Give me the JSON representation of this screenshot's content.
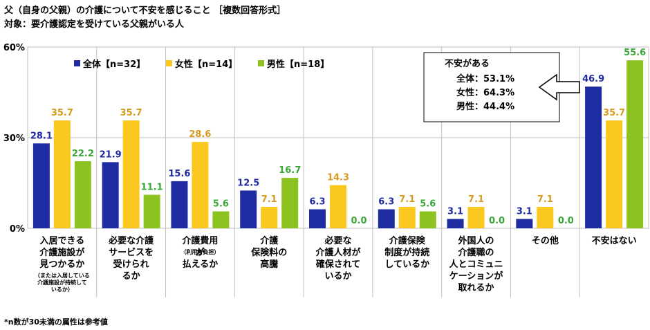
{
  "title": "父（自身の父親）の介護について不安を感じること ［複数回答形式］",
  "subtitle": "対象：要介護認定を受けている父親がいる人",
  "footnote": "*n数が30未満の属性は参考値",
  "colors": {
    "all": "#1f2ba0",
    "female": "#fac81e",
    "male": "#8cc321",
    "label_female": "#d89a1c",
    "label_male": "#3aa63a"
  },
  "chart_data": {
    "type": "bar",
    "ylim": [
      0,
      60
    ],
    "yticks": [
      "0%",
      "30%",
      "60%"
    ],
    "ytick_values": [
      0,
      30,
      60
    ],
    "categories": [
      [
        "入居できる",
        "介護施設が",
        "見つかるか"
      ],
      [
        "必要な介護",
        "サービスを",
        "受けられ",
        "るか"
      ],
      [
        "介護費用",
        "",
        "が",
        "払えるか"
      ],
      [
        "介護",
        "保険料の",
        "高騰"
      ],
      [
        "必要な",
        "介護人材が",
        "確保されて",
        "いるか"
      ],
      [
        "介護保険",
        "制度が持続",
        "しているか"
      ],
      [
        "外国人の",
        "介護職の",
        "人とコミュニ",
        "ケーションが",
        "取れるか"
      ],
      [
        "その他"
      ],
      [
        "不安はない"
      ]
    ],
    "category_notes": [
      [
        "（または入居している",
        "介護施設が持続して",
        "いるか）"
      ],
      [],
      [
        "（利用者負担）"
      ],
      [],
      [],
      [],
      [],
      [],
      []
    ],
    "series": [
      {
        "name": "全体【n=32】",
        "values": [
          28.1,
          21.9,
          15.6,
          12.5,
          6.3,
          6.3,
          3.1,
          3.1,
          46.9
        ]
      },
      {
        "name": "女性【n=14】",
        "values": [
          35.7,
          35.7,
          28.6,
          7.1,
          14.3,
          7.1,
          7.1,
          7.1,
          35.7
        ]
      },
      {
        "name": "男性【n=18】",
        "values": [
          22.2,
          11.1,
          5.6,
          16.7,
          0.0,
          5.6,
          0.0,
          0.0,
          55.6
        ]
      }
    ],
    "legend": "top-left",
    "annotation": {
      "heading": "不安がある",
      "lines": [
        "全体：53.1%",
        "女性：64.3%",
        "男性：44.4%"
      ]
    }
  }
}
